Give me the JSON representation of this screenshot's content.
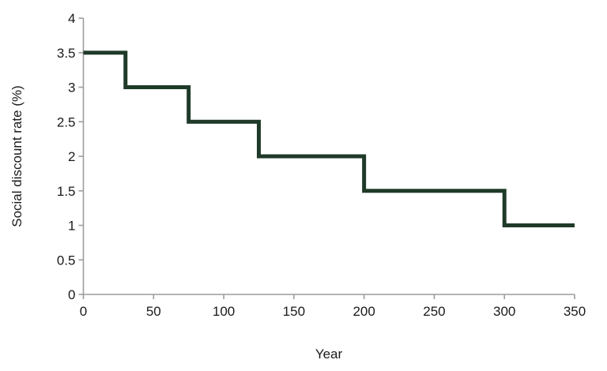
{
  "chart_data": {
    "type": "line",
    "subtype": "step",
    "title": "",
    "xlabel": "Year",
    "ylabel": "Social discount rate (%)",
    "xlim": [
      0,
      350
    ],
    "ylim": [
      0,
      4
    ],
    "x_ticks": [
      0,
      50,
      100,
      150,
      200,
      250,
      300,
      350
    ],
    "y_ticks": [
      0,
      0.5,
      1,
      1.5,
      2,
      2.5,
      3,
      3.5,
      4
    ],
    "grid": "off",
    "legend": "none",
    "series": [
      {
        "name": "Social discount rate",
        "points": [
          [
            0,
            3.5
          ],
          [
            30,
            3.5
          ],
          [
            30,
            3.0
          ],
          [
            75,
            3.0
          ],
          [
            75,
            2.5
          ],
          [
            125,
            2.5
          ],
          [
            125,
            2.0
          ],
          [
            200,
            2.0
          ],
          [
            200,
            1.5
          ],
          [
            300,
            1.5
          ],
          [
            300,
            1.0
          ],
          [
            350,
            1.0
          ]
        ]
      }
    ],
    "segments": [
      {
        "year_from": 0,
        "year_to": 30,
        "rate_pct": 3.5
      },
      {
        "year_from": 30,
        "year_to": 75,
        "rate_pct": 3.0
      },
      {
        "year_from": 75,
        "year_to": 125,
        "rate_pct": 2.5
      },
      {
        "year_from": 125,
        "year_to": 200,
        "rate_pct": 2.0
      },
      {
        "year_from": 200,
        "year_to": 300,
        "rate_pct": 1.5
      },
      {
        "year_from": 300,
        "year_to": 350,
        "rate_pct": 1.0
      }
    ],
    "colors": {
      "line": "#1f3a28",
      "axis": "#9c9c9c",
      "text": "#1a1a1a",
      "background": "#ffffff"
    },
    "line_width": 5
  }
}
